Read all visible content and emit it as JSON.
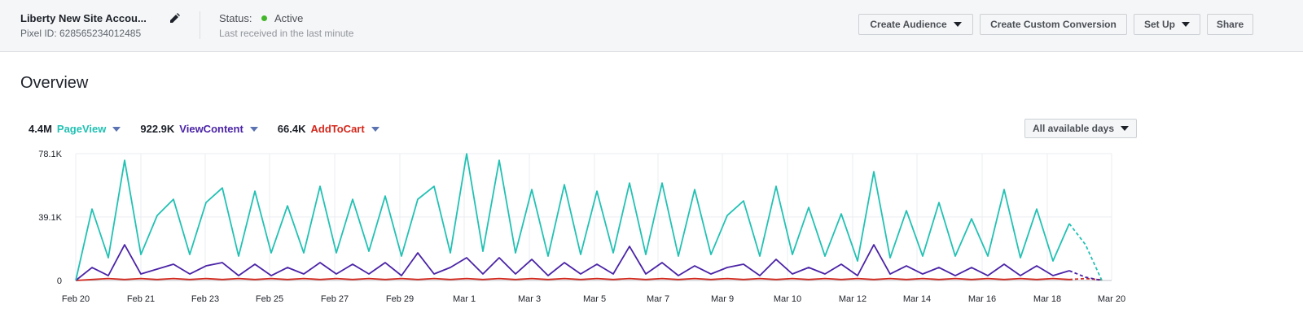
{
  "header": {
    "account_name": "Liberty New Site Accou...",
    "pixel_id": "Pixel ID: 628565234012485",
    "status_label": "Status:",
    "status": "Active",
    "last_received": "Last received in the last minute",
    "buttons": [
      "Create Audience",
      "Create Custom Conversion",
      "Set Up",
      "Share"
    ]
  },
  "overview": {
    "title": "Overview",
    "date_range": "All available days"
  },
  "chart_data": {
    "type": "line",
    "x": [
      0,
      1,
      2,
      3,
      4,
      5,
      6,
      7,
      8,
      9,
      10,
      11,
      12,
      13,
      14,
      15,
      16,
      17,
      18,
      19,
      20,
      21,
      22,
      23,
      24,
      25,
      26,
      27,
      28,
      29,
      30,
      31,
      32,
      33,
      34,
      35,
      36,
      37,
      38,
      39,
      40,
      41,
      42,
      43,
      44,
      45,
      46,
      47,
      48,
      49,
      50,
      51,
      52,
      53,
      54,
      55,
      56,
      57,
      58,
      59,
      60,
      61,
      62,
      63
    ],
    "xlim": [
      0,
      63.6
    ],
    "xticks": [
      {
        "value": 0,
        "label": "Feb 20"
      },
      {
        "value": 4,
        "label": "Feb 21"
      },
      {
        "value": 7.95,
        "label": "Feb 23"
      },
      {
        "value": 11.9,
        "label": "Feb 25"
      },
      {
        "value": 15.9,
        "label": "Feb 27"
      },
      {
        "value": 19.9,
        "label": "Feb 29"
      },
      {
        "value": 23.85,
        "label": "Mar 1"
      },
      {
        "value": 27.85,
        "label": "Mar 3"
      },
      {
        "value": 31.85,
        "label": "Mar 5"
      },
      {
        "value": 35.75,
        "label": "Mar 7"
      },
      {
        "value": 39.7,
        "label": "Mar 9"
      },
      {
        "value": 43.7,
        "label": "Mar 10"
      },
      {
        "value": 47.7,
        "label": "Mar 12"
      },
      {
        "value": 51.65,
        "label": "Mar 14"
      },
      {
        "value": 55.65,
        "label": "Mar 16"
      },
      {
        "value": 59.65,
        "label": "Mar 18"
      },
      {
        "value": 63.6,
        "label": "Mar 20"
      }
    ],
    "ylim": [
      0,
      78.1
    ],
    "yticks": [
      0,
      {
        "value": 39.1,
        "label": "39.1K"
      },
      {
        "value": 78.1,
        "label": "78.1K"
      }
    ],
    "dashed_from_x": 61,
    "series": [
      {
        "name": "PageView",
        "total": "4.4M",
        "color": "#22c1b4",
        "values": [
          0,
          44,
          14,
          74,
          16,
          40,
          50,
          16,
          48,
          57,
          15,
          55,
          17,
          46,
          17,
          58,
          17,
          50,
          18,
          52,
          15,
          50,
          58,
          17,
          78,
          18,
          74,
          17,
          56,
          15,
          59,
          16,
          55,
          17,
          60,
          16,
          60,
          15,
          56,
          16,
          40,
          49,
          15,
          58,
          16,
          45,
          15,
          41,
          12,
          67,
          14,
          43,
          15,
          48,
          15,
          38,
          15,
          56,
          14,
          44,
          12,
          35,
          22,
          0
        ]
      },
      {
        "name": "ViewContent",
        "total": "922.9K",
        "color": "#4a23a6",
        "values": [
          0,
          8,
          3,
          22,
          4,
          7,
          10,
          4,
          9,
          11,
          3,
          10,
          3,
          8,
          4,
          11,
          4,
          10,
          4,
          11,
          3,
          17,
          4,
          8,
          14,
          4,
          14,
          4,
          13,
          3,
          11,
          4,
          10,
          4,
          21,
          4,
          11,
          3,
          9,
          4,
          8,
          10,
          3,
          13,
          4,
          8,
          4,
          10,
          3,
          22,
          4,
          9,
          4,
          8,
          3,
          8,
          3,
          10,
          3,
          9,
          3,
          6,
          2,
          0
        ]
      },
      {
        "name": "AddToCart",
        "total": "66.4K",
        "color": "#d3281c",
        "values": [
          0,
          0.6,
          1.2,
          0.6,
          1.2,
          0.6,
          1.2,
          0.6,
          1.2,
          0.6,
          1.2,
          0.6,
          1.2,
          0.6,
          1.2,
          0.6,
          1.2,
          0.6,
          1.2,
          0.6,
          1.2,
          0.6,
          1.2,
          0.6,
          1.2,
          0.6,
          1.2,
          0.6,
          1.2,
          0.6,
          1.2,
          0.6,
          1.2,
          0.6,
          1.2,
          0.6,
          1.2,
          0.6,
          1.2,
          0.6,
          1.2,
          0.6,
          1.2,
          0.6,
          1.2,
          0.6,
          1.2,
          0.6,
          1.2,
          0.6,
          1.2,
          0.6,
          1.2,
          0.6,
          1.2,
          0.6,
          1.2,
          0.6,
          1.2,
          0.6,
          1.2,
          0.6,
          1.2,
          0.4
        ]
      }
    ]
  }
}
